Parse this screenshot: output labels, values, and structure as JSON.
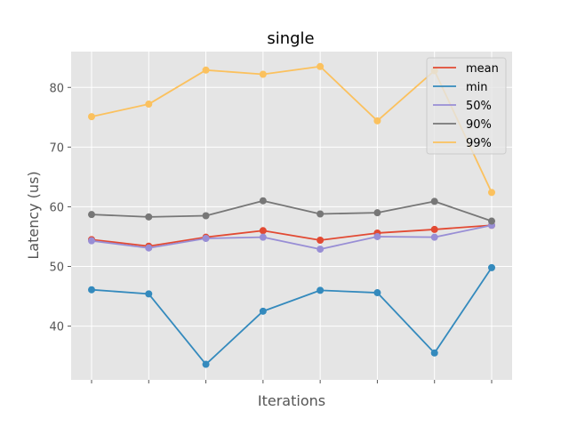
{
  "chart_data": {
    "type": "line",
    "title": "single",
    "xlabel": "Iterations",
    "ylabel": "Latency (us)",
    "x": [
      0,
      1,
      2,
      3,
      4,
      5,
      6,
      7
    ],
    "ylim": [
      31,
      86
    ],
    "yticks": [
      40,
      50,
      60,
      70,
      80
    ],
    "grid": true,
    "legend_position": "top-right",
    "series": [
      {
        "name": "mean",
        "color": "#E24A33",
        "values": [
          54.5,
          53.4,
          54.9,
          56.0,
          54.4,
          55.6,
          56.2,
          56.9
        ]
      },
      {
        "name": "min",
        "color": "#348ABD",
        "values": [
          46.1,
          45.4,
          33.6,
          42.5,
          46.0,
          45.6,
          35.5,
          49.8
        ]
      },
      {
        "name": "50%",
        "color": "#988ED5",
        "values": [
          54.3,
          53.1,
          54.7,
          54.9,
          52.9,
          55.0,
          54.9,
          56.9
        ]
      },
      {
        "name": "90%",
        "color": "#777777",
        "values": [
          58.7,
          58.3,
          58.5,
          61.0,
          58.8,
          59.0,
          60.9,
          57.6
        ]
      },
      {
        "name": "99%",
        "color": "#FBC15E",
        "values": [
          75.1,
          77.2,
          82.9,
          82.2,
          83.5,
          74.4,
          82.8,
          62.4
        ]
      }
    ]
  }
}
